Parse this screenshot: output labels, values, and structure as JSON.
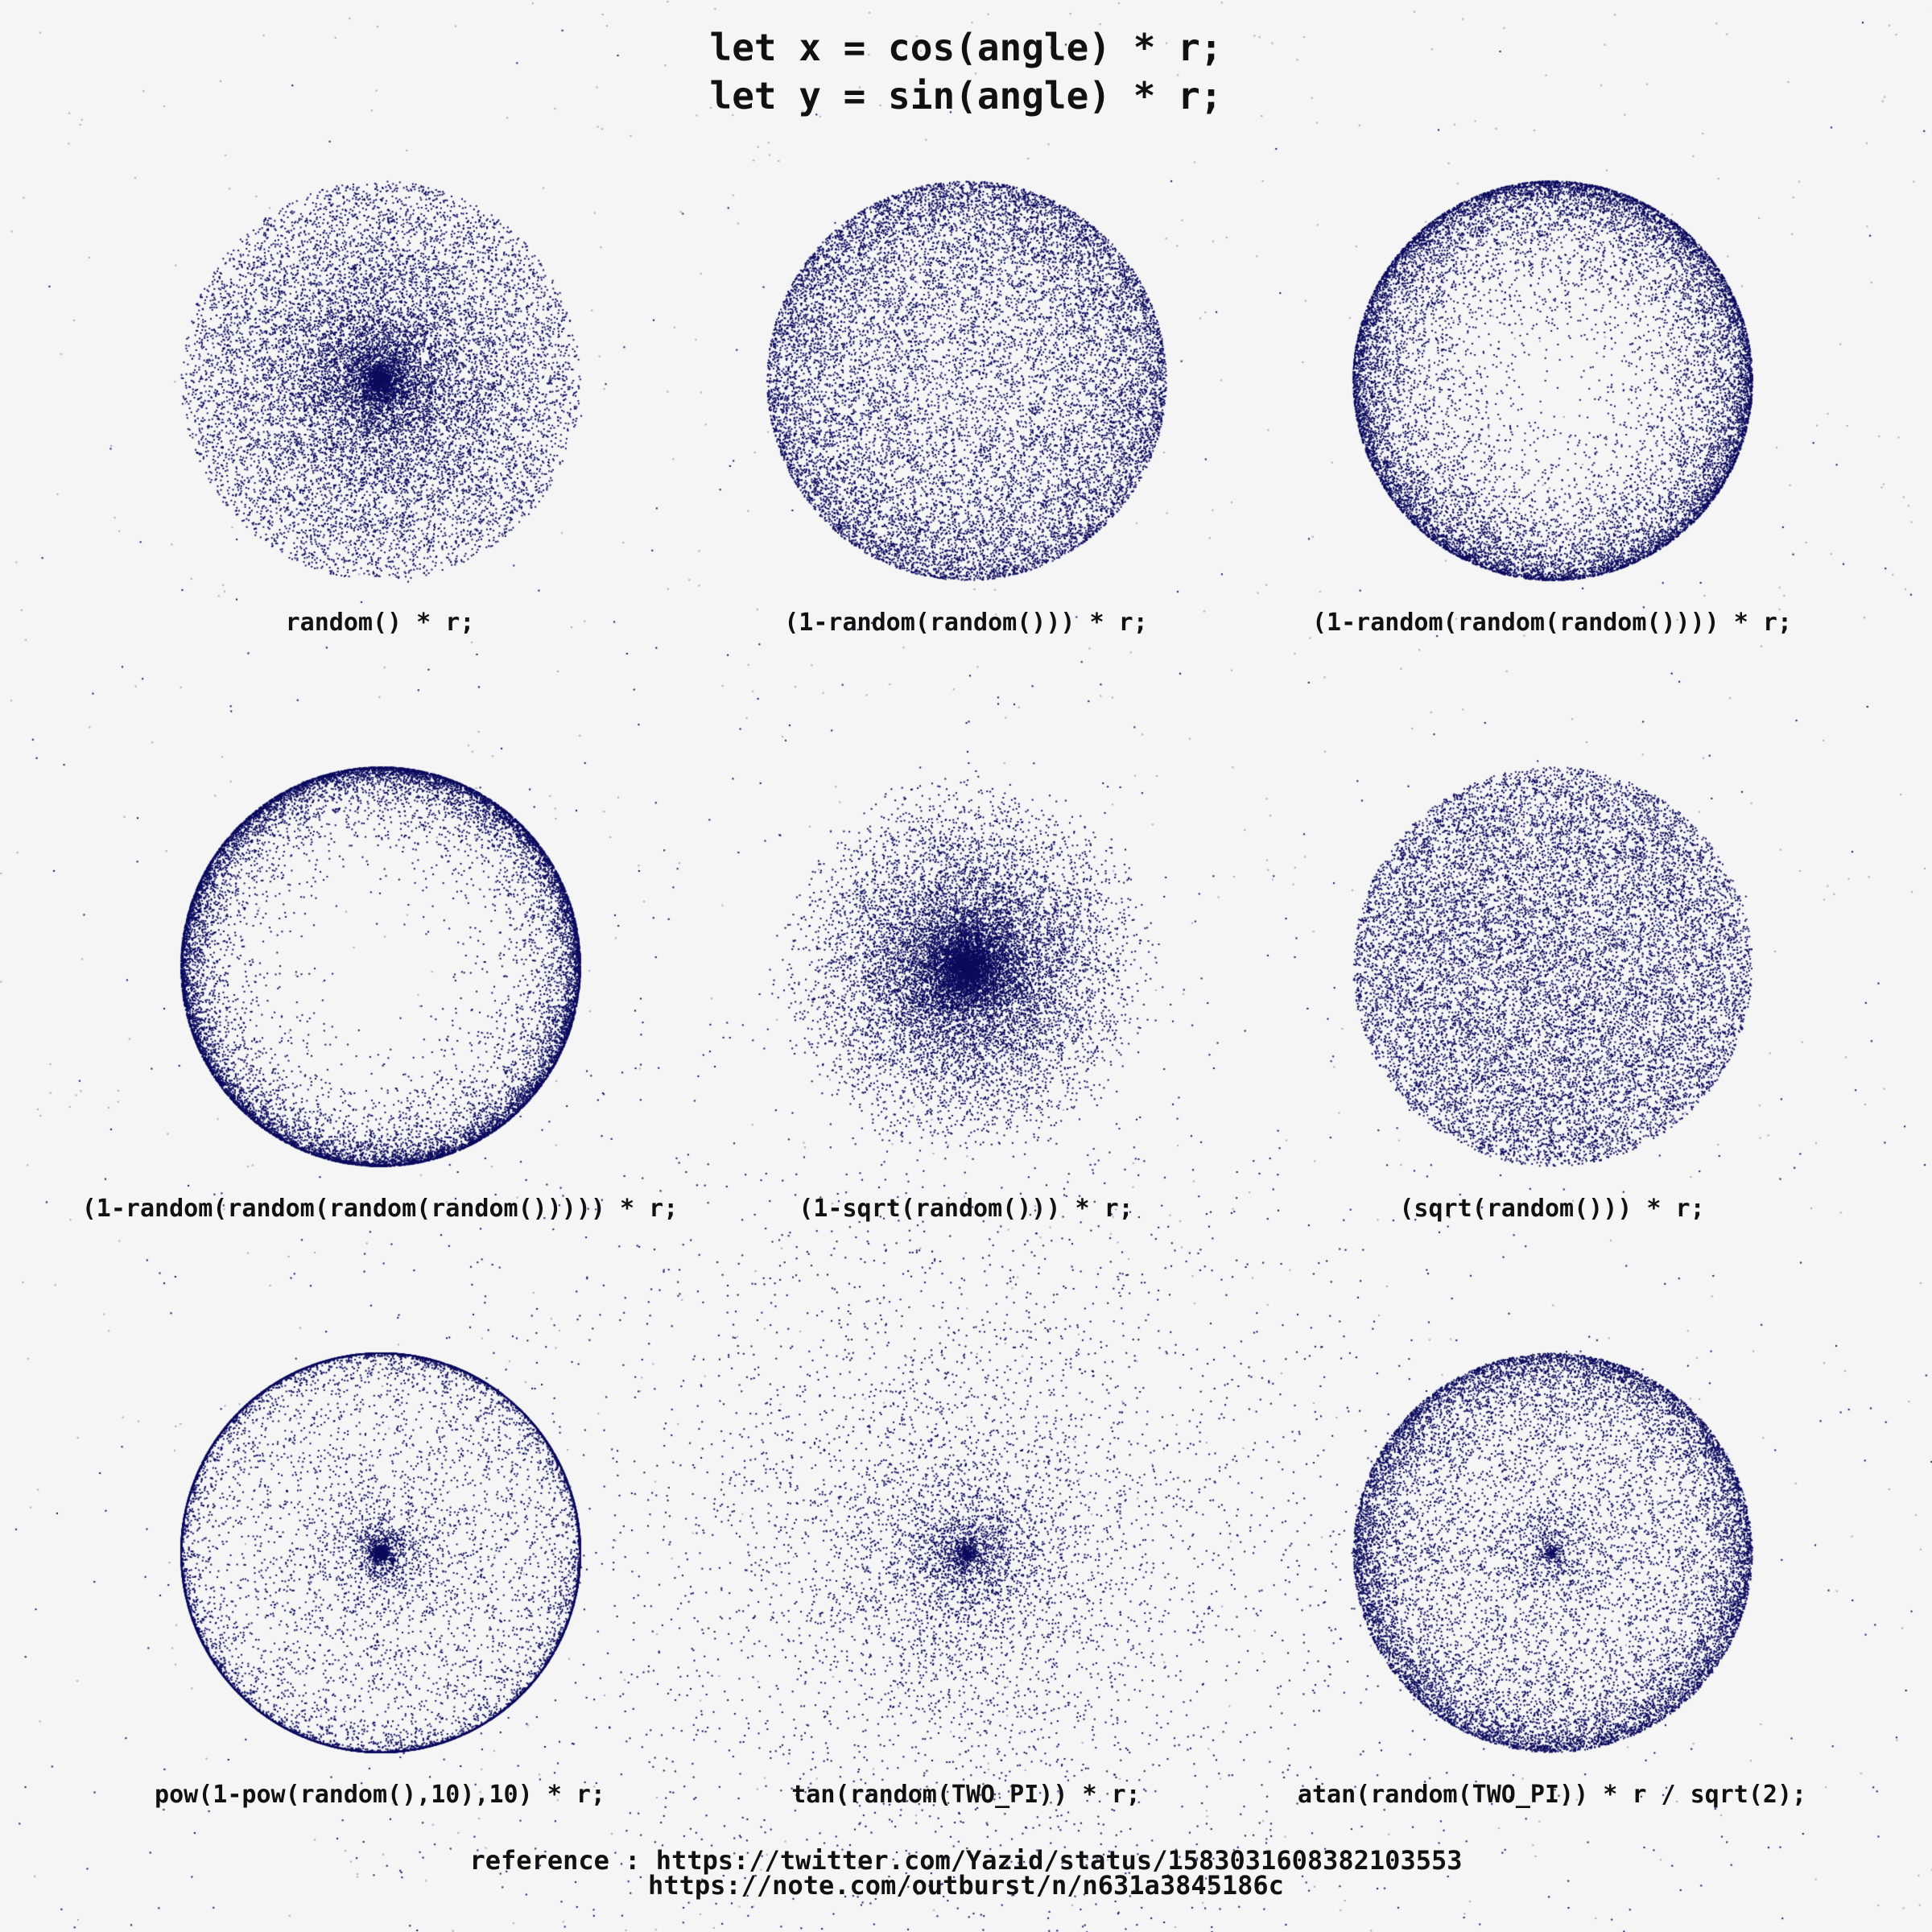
{
  "title": {
    "line1": "let x = cos(angle) * r;",
    "line2": "let y = sin(angle) * r;"
  },
  "dot_color": "#0b0b5e",
  "background_color": "#f5f5f5",
  "cells": [
    {
      "label": "random() * r;",
      "distribution": "uniform"
    },
    {
      "label": "(1-random(random())) * r;",
      "distribution": "one_minus_nested_2"
    },
    {
      "label": "(1-random(random(random()))) * r;",
      "distribution": "one_minus_nested_3"
    },
    {
      "label": "(1-random(random(random(random())))) * r;",
      "distribution": "one_minus_nested_4"
    },
    {
      "label": "(1-sqrt(random())) * r;",
      "distribution": "one_minus_sqrt"
    },
    {
      "label": "(sqrt(random())) * r;",
      "distribution": "sqrt"
    },
    {
      "label": "pow(1-pow(random(),10),10) * r;",
      "distribution": "pow_pow"
    },
    {
      "label": "tan(random(TWO_PI)) * r;",
      "distribution": "tan"
    },
    {
      "label": "atan(random(TWO_PI)) * r / sqrt(2);",
      "distribution": "atan"
    }
  ],
  "reference": {
    "line1": "reference : https://twitter.com/Yazid/status/1583031608382103553",
    "line2": "https://note.com/outburst/n/n631a3845186c"
  }
}
